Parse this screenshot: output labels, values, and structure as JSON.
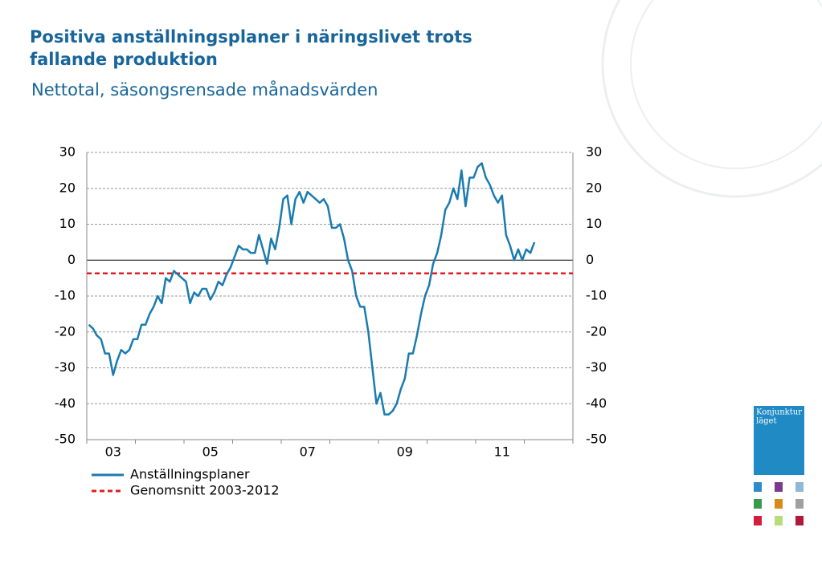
{
  "chart_data": {
    "type": "line",
    "title": [
      "Positiva anställningsplaner i näringslivet trots",
      "fallande produktion"
    ],
    "subtitle": "Nettotal, säsongsrensade månadsvärden",
    "brand": [
      "Konjunktur",
      "läget"
    ],
    "categories": [
      null,
      null,
      null,
      null,
      null,
      null,
      "03",
      null,
      null,
      null,
      null,
      null,
      null,
      null,
      null,
      null,
      null,
      null,
      null,
      null,
      null,
      null,
      null,
      null,
      null,
      null,
      null,
      null,
      null,
      null,
      "05",
      null,
      null,
      null,
      null,
      null,
      null,
      null,
      null,
      null,
      null,
      null,
      null,
      null,
      null,
      null,
      null,
      null,
      null,
      null,
      null,
      null,
      null,
      null,
      "07",
      null,
      null,
      null,
      null,
      null,
      null,
      null,
      null,
      null,
      null,
      null,
      null,
      null,
      null,
      null,
      null,
      null,
      null,
      null,
      null,
      null,
      null,
      null,
      "09",
      null,
      null,
      null,
      null,
      null,
      null,
      null,
      null,
      null,
      null,
      null,
      null,
      null,
      null,
      null,
      null,
      null,
      null,
      null,
      null,
      null,
      null,
      null,
      "11",
      null,
      null,
      null,
      null,
      null,
      null,
      null,
      null,
      null,
      null,
      null,
      null,
      null,
      null,
      null,
      null,
      null
    ],
    "series": [
      {
        "name": "Anställningsplaner",
        "color": "#1a7bb0",
        "values": [
          -18,
          -19,
          -21,
          -22,
          -26,
          -26,
          -32,
          -28,
          -25,
          -26,
          -25,
          -22,
          -22,
          -18,
          -18,
          -15,
          -13,
          -10,
          -12,
          -5,
          -6,
          -3,
          -4,
          -5,
          -6,
          -12,
          -9,
          -10,
          -8,
          -8,
          -11,
          -9,
          -6,
          -7,
          -4,
          -2,
          1,
          4,
          3,
          3,
          2,
          2,
          7,
          3,
          -1,
          6,
          3,
          9,
          17,
          18,
          10,
          17,
          19,
          16,
          19,
          18,
          17,
          16,
          17,
          15,
          9,
          9,
          10,
          6,
          0,
          -3,
          -10,
          -13,
          -13,
          -20,
          -30,
          -40,
          -37,
          -43,
          -43,
          -42,
          -40,
          -36,
          -33,
          -26,
          -26,
          -21,
          -15,
          -10,
          -7,
          -1,
          2,
          7,
          14,
          16,
          20,
          17,
          25,
          15,
          23,
          23,
          26,
          27,
          23,
          21,
          18,
          16,
          18,
          7,
          4,
          0,
          3,
          0,
          3,
          2,
          5,
          null,
          null,
          null,
          null,
          null,
          null,
          null,
          null,
          null
        ]
      }
    ],
    "mean": {
      "name": "Genomsnitt 2003-2012",
      "color": "#e31b22",
      "value": -3.7
    },
    "ylim": [
      -50,
      30
    ],
    "yticks": [
      -50,
      -40,
      -30,
      -20,
      -10,
      0,
      10,
      20,
      30
    ],
    "grid": true
  }
}
